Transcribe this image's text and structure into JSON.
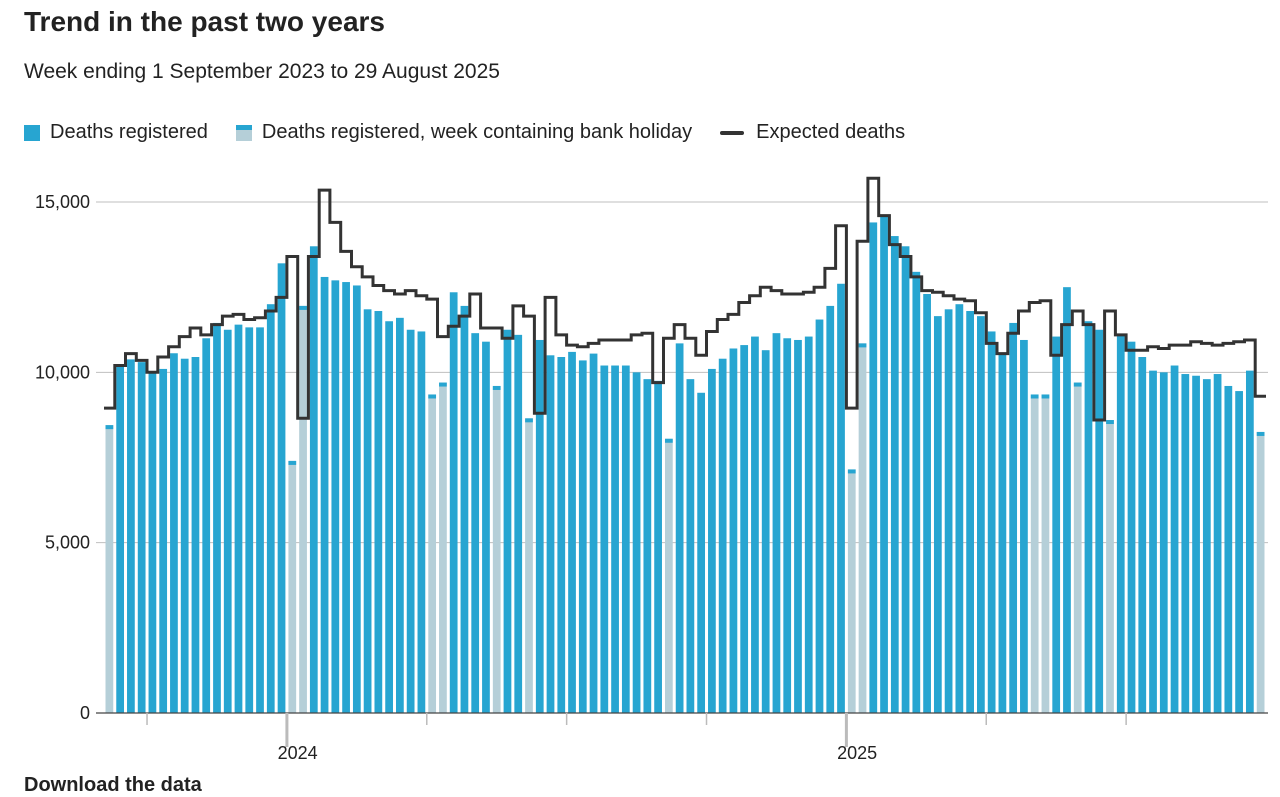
{
  "header": {
    "title": "Trend in the past two years",
    "subtitle": "Week ending 1 September 2023 to 29 August 2025"
  },
  "footer": {
    "next_heading": "Download the data"
  },
  "colors": {
    "registered": "#27a5d1",
    "registered_cap": "#1f95c1",
    "bank_holiday": "#b5cfd8",
    "bank_holiday_cap": "#27a5d1",
    "expected": "#333333",
    "grid": "#bfbfbf"
  },
  "chart_data": {
    "type": "bar",
    "title": "Trend in the past two years",
    "subtitle": "Week ending 1 September 2023 to 29 August 2025",
    "xlabel": "",
    "ylabel": "",
    "ylim": [
      0,
      15000
    ],
    "yticks": [
      0,
      5000,
      10000,
      15000
    ],
    "ytick_labels": [
      "0",
      "5,000",
      "10,000",
      "15,000"
    ],
    "xtick_labels": [
      "2024",
      "2025"
    ],
    "xtick_label_weeks": [
      18,
      70
    ],
    "year_start_weeks": [
      17,
      69
    ],
    "grid": true,
    "legend_position": "top-left",
    "legend": [
      {
        "key": "registered",
        "label": "Deaths registered"
      },
      {
        "key": "bank_holiday",
        "label": "Deaths registered, week containing bank holiday"
      },
      {
        "key": "expected",
        "label": "Expected deaths"
      }
    ],
    "x_start": "2023-09-01",
    "x_end": "2025-08-29",
    "series": [
      {
        "name": "Deaths registered",
        "values": [
          8450,
          10200,
          10380,
          10300,
          9980,
          10100,
          10560,
          10400,
          10450,
          11000,
          11450,
          11250,
          11400,
          11320,
          11320,
          12000,
          13200,
          7400,
          11950,
          13700,
          12800,
          12700,
          12650,
          12550,
          11850,
          11800,
          11500,
          11600,
          11250,
          11200,
          9350,
          9700,
          12350,
          11950,
          11150,
          10900,
          9600,
          11250,
          11100,
          8650,
          10950,
          10500,
          10450,
          10600,
          10350,
          10550,
          10200,
          10200,
          10200,
          10000,
          9800,
          9750,
          8050,
          10850,
          9800,
          9400,
          10100,
          10400,
          10700,
          10800,
          11050,
          10650,
          11150,
          11000,
          10950,
          11050,
          11550,
          11950,
          12600,
          7150,
          10850,
          14400,
          14600,
          14000,
          13700,
          12950,
          12300,
          11650,
          11850,
          12000,
          11800,
          11650,
          11200,
          10550,
          11450,
          10950,
          9350,
          9350,
          11050,
          12500,
          9700,
          11500,
          11250,
          8600,
          11100,
          10900,
          10450,
          10050,
          10000,
          10200,
          9950,
          9900,
          9800,
          9950,
          9600,
          9450,
          10050,
          8250
        ],
        "bank_holiday": [
          true,
          false,
          false,
          false,
          false,
          false,
          false,
          false,
          false,
          false,
          false,
          false,
          false,
          false,
          false,
          false,
          false,
          true,
          true,
          false,
          false,
          false,
          false,
          false,
          false,
          false,
          false,
          false,
          false,
          false,
          true,
          true,
          false,
          false,
          false,
          false,
          true,
          false,
          false,
          true,
          false,
          false,
          false,
          false,
          false,
          false,
          false,
          false,
          false,
          false,
          false,
          false,
          true,
          false,
          false,
          false,
          false,
          false,
          false,
          false,
          false,
          false,
          false,
          false,
          false,
          false,
          false,
          false,
          false,
          true,
          true,
          false,
          false,
          false,
          false,
          false,
          false,
          false,
          false,
          false,
          false,
          false,
          false,
          false,
          false,
          false,
          true,
          true,
          false,
          false,
          true,
          false,
          false,
          true,
          false,
          false,
          false,
          false,
          false,
          false,
          false,
          false,
          false,
          false,
          false,
          false,
          false,
          true
        ]
      },
      {
        "name": "Expected deaths",
        "values": [
          8950,
          10200,
          10550,
          10350,
          10000,
          10450,
          10750,
          11050,
          11300,
          11100,
          11400,
          11650,
          11700,
          11550,
          11600,
          11800,
          12200,
          13400,
          8650,
          13400,
          15350,
          14400,
          13550,
          13100,
          12800,
          12550,
          12400,
          12300,
          12400,
          12250,
          12150,
          11050,
          11350,
          11650,
          12300,
          11300,
          11300,
          11000,
          11950,
          11650,
          8800,
          12200,
          11100,
          10800,
          10750,
          10850,
          10950,
          10950,
          10950,
          11100,
          11150,
          9700,
          11000,
          11400,
          11000,
          10500,
          11200,
          11550,
          11700,
          12050,
          12250,
          12500,
          12400,
          12300,
          12300,
          12350,
          12500,
          13050,
          14300,
          8950,
          13850,
          15700,
          14600,
          13750,
          13400,
          12800,
          12400,
          12350,
          12250,
          12150,
          12100,
          11750,
          10850,
          10550,
          11150,
          11800,
          12050,
          12100,
          10500,
          11400,
          11800,
          11400,
          8600,
          11800,
          11100,
          10650,
          10650,
          10750,
          10700,
          10800,
          10800,
          10900,
          10850,
          10800,
          10850,
          10900,
          10950,
          9300
        ]
      }
    ]
  }
}
